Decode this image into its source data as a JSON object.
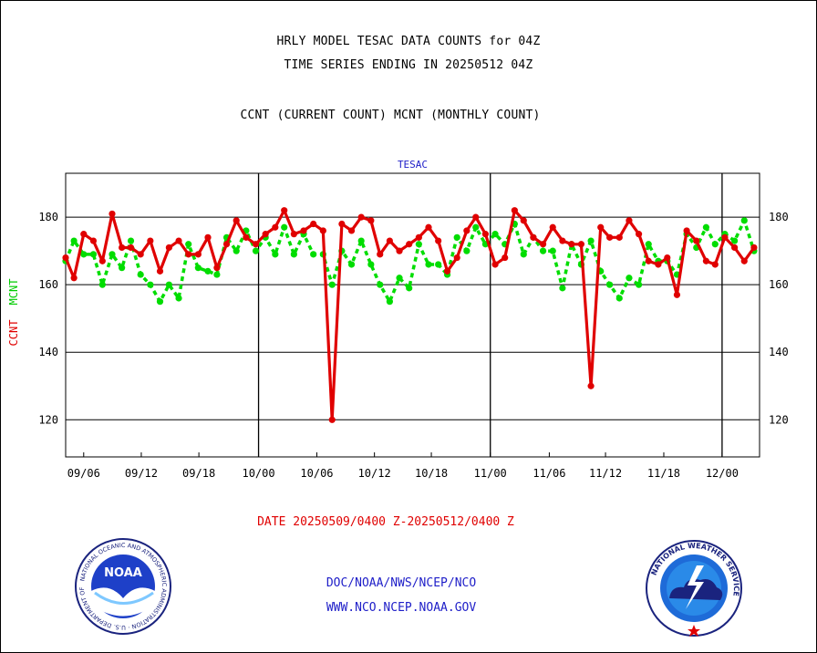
{
  "header": {
    "title1": "HRLY MODEL TESAC DATA COUNTS for 04Z",
    "title2": "TIME SERIES ENDING IN 20250512 04Z",
    "title3": "CCNT (CURRENT COUNT) MCNT (MONTHLY COUNT)"
  },
  "chart_data": {
    "type": "line",
    "title": "TESAC",
    "ylabel_left": "CCNT",
    "ylabel_left2": "MCNT",
    "xlabel": "DATE 20250509/0400 Z-20250512/0400 Z",
    "ylim": [
      109,
      193
    ],
    "yticks": [
      120,
      140,
      160,
      180
    ],
    "xlim": [
      0,
      100
    ],
    "xtick_labels": [
      "09/06",
      "09/12",
      "09/18",
      "10/00",
      "10/06",
      "10/12",
      "10/18",
      "11/00",
      "11/06",
      "11/12",
      "11/18",
      "12/00"
    ],
    "xtick_positions": [
      2.6,
      10.9,
      19.2,
      27.8,
      36.2,
      44.5,
      52.7,
      61.2,
      69.7,
      77.8,
      86.2,
      94.6
    ],
    "day_boundaries": [
      27.8,
      61.2,
      94.6
    ],
    "grid": "horizontal",
    "series": [
      {
        "name": "CCNT",
        "color": "#e00000",
        "x": [
          0,
          1.2,
          2.6,
          4.0,
          5.3,
          6.7,
          8.1,
          9.4,
          10.8,
          12.2,
          13.6,
          14.9,
          16.3,
          17.7,
          19.1,
          20.5,
          21.8,
          23.2,
          24.6,
          26.0,
          27.4,
          28.8,
          30.2,
          31.5,
          32.9,
          34.3,
          35.7,
          37.1,
          38.4,
          39.8,
          41.2,
          42.6,
          44.0,
          45.3,
          46.7,
          48.1,
          49.5,
          50.9,
          52.3,
          53.7,
          55.0,
          56.4,
          57.8,
          59.1,
          60.5,
          61.9,
          63.3,
          64.7,
          66.0,
          67.4,
          68.8,
          70.2,
          71.6,
          72.9,
          74.3,
          75.7,
          77.1,
          78.4,
          79.8,
          81.2,
          82.6,
          84.0,
          85.4,
          86.7,
          88.1,
          89.5,
          90.9,
          92.3,
          93.6,
          95.0,
          96.4,
          97.8,
          99.2
        ],
        "values": [
          168,
          162,
          175,
          173,
          167,
          181,
          171,
          171,
          169,
          173,
          164,
          171,
          173,
          169,
          169,
          174,
          165,
          172,
          179,
          174,
          172,
          175,
          177,
          182,
          175,
          176,
          178,
          176,
          120,
          178,
          176,
          180,
          179,
          169,
          173,
          170,
          172,
          174,
          177,
          173,
          164,
          168,
          176,
          180,
          175,
          166,
          168,
          182,
          179,
          174,
          172,
          177,
          173,
          172,
          172,
          130,
          177,
          174,
          174,
          179,
          175,
          167,
          166,
          168,
          157,
          176,
          173,
          167,
          166,
          174,
          171,
          167,
          171
        ]
      },
      {
        "name": "MCNT",
        "color": "#00dd00",
        "x": [
          0,
          1.2,
          2.6,
          4.0,
          5.3,
          6.7,
          8.1,
          9.4,
          10.8,
          12.2,
          13.6,
          14.9,
          16.3,
          17.7,
          19.1,
          20.5,
          21.8,
          23.2,
          24.6,
          26.0,
          27.4,
          28.8,
          30.2,
          31.5,
          32.9,
          34.3,
          35.7,
          37.1,
          38.4,
          39.8,
          41.2,
          42.6,
          44.0,
          45.3,
          46.7,
          48.1,
          49.5,
          50.9,
          52.3,
          53.7,
          55.0,
          56.4,
          57.8,
          59.1,
          60.5,
          61.9,
          63.3,
          64.7,
          66.0,
          67.4,
          68.8,
          70.2,
          71.6,
          72.9,
          74.3,
          75.7,
          77.1,
          78.4,
          79.8,
          81.2,
          82.6,
          84.0,
          85.4,
          86.7,
          88.1,
          89.5,
          90.9,
          92.3,
          93.6,
          95.0,
          96.4,
          97.8,
          99.2
        ],
        "values": [
          167,
          173,
          169,
          169,
          160,
          169,
          165,
          173,
          163,
          160,
          155,
          160,
          156,
          172,
          165,
          164,
          163,
          174,
          170,
          176,
          170,
          174,
          169,
          177,
          169,
          175,
          169,
          169,
          160,
          170,
          166,
          173,
          166,
          160,
          155,
          162,
          159,
          172,
          166,
          166,
          163,
          174,
          170,
          177,
          172,
          175,
          172,
          178,
          169,
          174,
          170,
          170,
          159,
          172,
          166,
          173,
          164,
          160,
          156,
          162,
          160,
          172,
          167,
          167,
          163,
          175,
          171,
          177,
          172,
          175,
          173,
          179,
          170
        ]
      }
    ]
  },
  "footer": {
    "link1": "DOC/NOAA/NWS/NCEP/NCO",
    "link2": "WWW.NCO.NCEP.NOAA.GOV"
  },
  "logos": {
    "left": "noaa-logo",
    "left_text": "NOAA",
    "left_ring_text": "NATIONAL OCEANIC AND ATMOSPHERIC ADMINISTRATION · U.S. DEPARTMENT OF COMMERCE",
    "right": "nws-logo",
    "right_ring_text": "NATIONAL WEATHER SERVICE"
  }
}
